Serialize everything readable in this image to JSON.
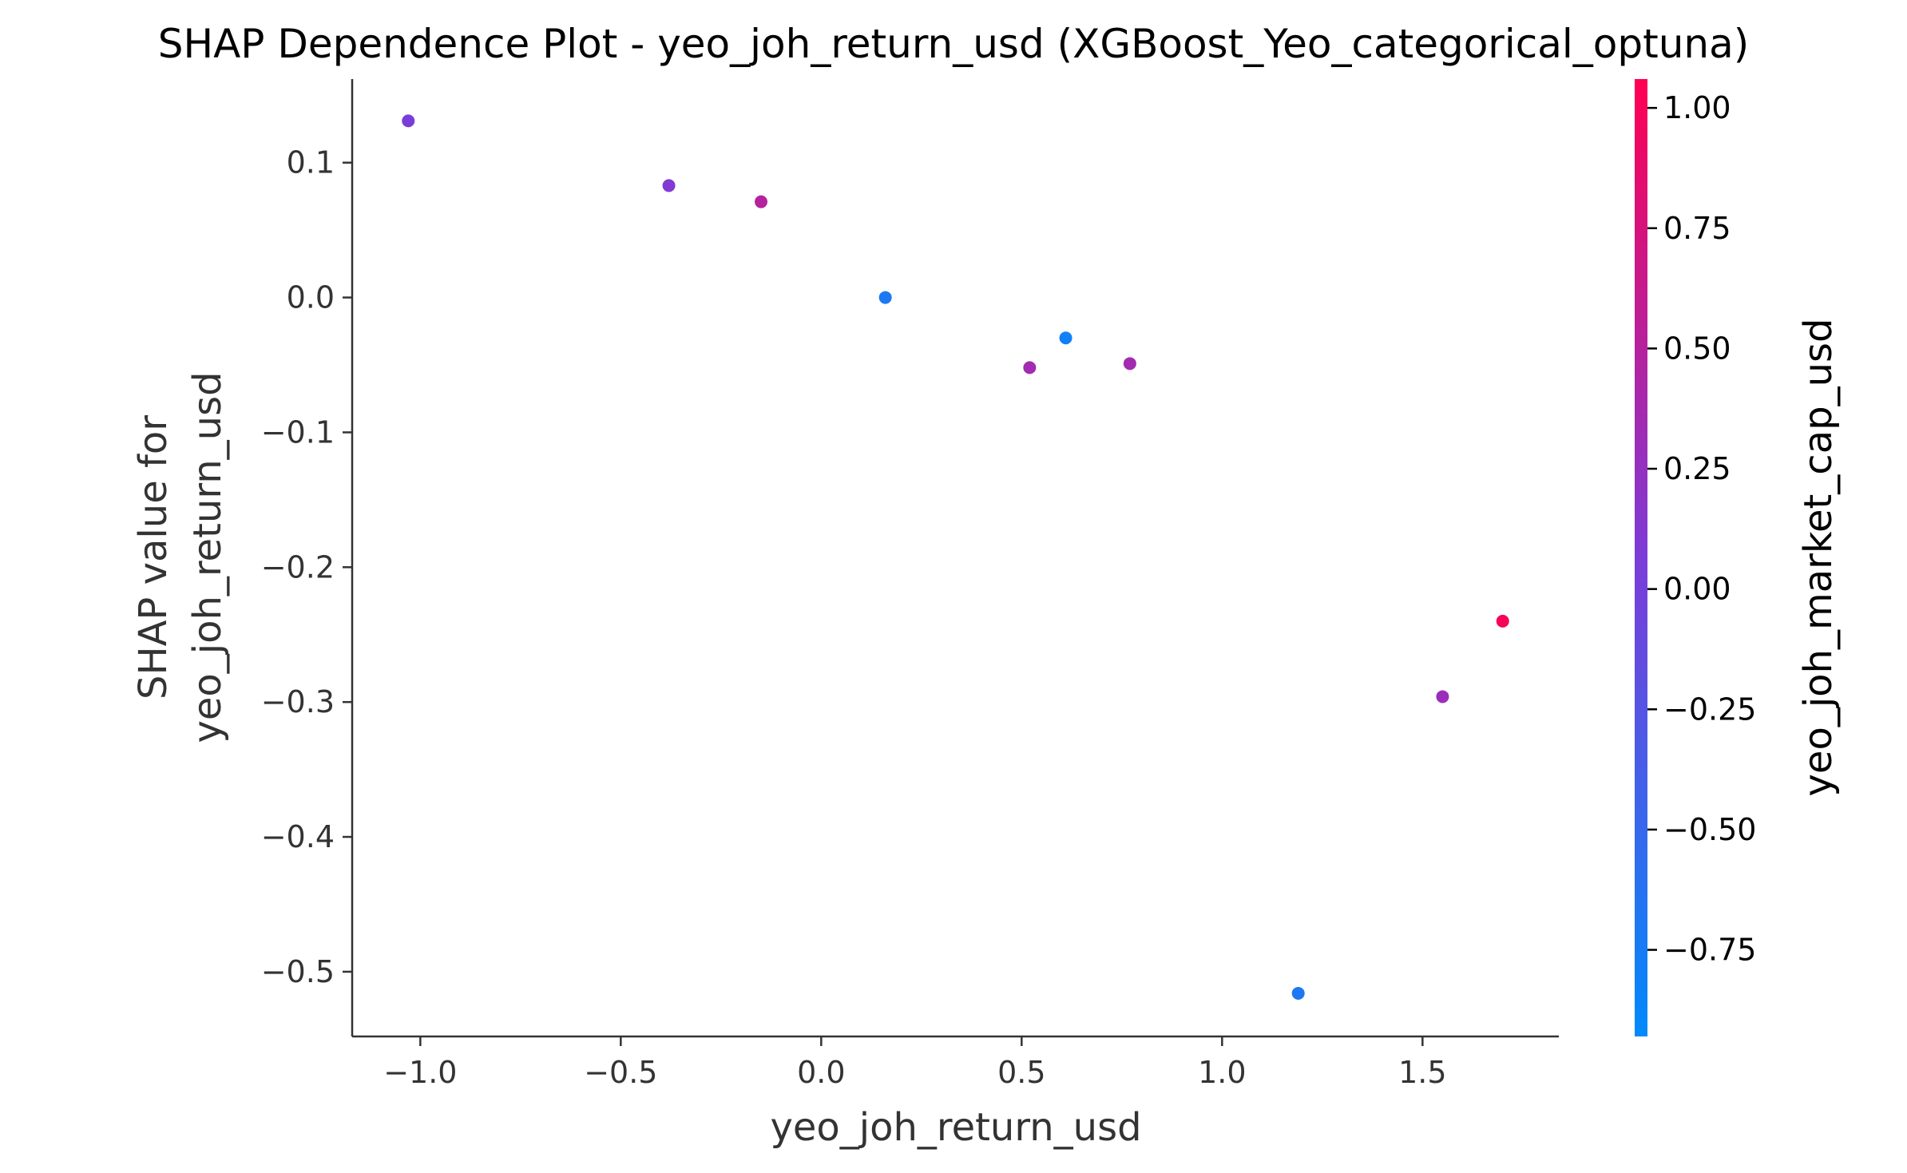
{
  "chart_data": {
    "type": "scatter",
    "title": "SHAP Dependence Plot - yeo_joh_return_usd (XGBoost_Yeo_categorical_optuna)",
    "xlabel": "yeo_joh_return_usd",
    "ylabel_lines": [
      "SHAP value for",
      "yeo_joh_return_usd"
    ],
    "xlim": [
      -1.17,
      1.84
    ],
    "ylim": [
      -0.548,
      0.162
    ],
    "x_ticks": [
      -1.0,
      -0.5,
      0.0,
      0.5,
      1.0,
      1.5
    ],
    "x_tick_labels": [
      "−1.0",
      "−0.5",
      "0.0",
      "0.5",
      "1.0",
      "1.5"
    ],
    "y_ticks": [
      0.1,
      0.0,
      -0.1,
      -0.2,
      -0.3,
      -0.4,
      -0.5
    ],
    "y_tick_labels": [
      "0.1",
      "0.0",
      "−0.1",
      "−0.2",
      "−0.3",
      "−0.4",
      "−0.5"
    ],
    "grid": false,
    "points": [
      {
        "x": -1.03,
        "y": 0.131,
        "color_value": 0.05
      },
      {
        "x": -0.38,
        "y": 0.083,
        "color_value": 0.1
      },
      {
        "x": -0.15,
        "y": 0.071,
        "color_value": 0.5
      },
      {
        "x": 0.16,
        "y": 0.0,
        "color_value": -0.7
      },
      {
        "x": 0.52,
        "y": -0.052,
        "color_value": 0.35
      },
      {
        "x": 0.61,
        "y": -0.03,
        "color_value": -0.8
      },
      {
        "x": 0.77,
        "y": -0.049,
        "color_value": 0.35
      },
      {
        "x": 1.19,
        "y": -0.516,
        "color_value": -0.7
      },
      {
        "x": 1.55,
        "y": -0.296,
        "color_value": 0.3
      },
      {
        "x": 1.7,
        "y": -0.24,
        "color_value": 1.0
      }
    ],
    "colorbar": {
      "label": "yeo_joh_market_cap_usd",
      "range": [
        -0.93,
        1.06
      ],
      "ticks": [
        1.0,
        0.75,
        0.5,
        0.25,
        0.0,
        -0.25,
        -0.5,
        -0.75
      ],
      "tick_labels": [
        "1.00",
        "0.75",
        "0.50",
        "0.25",
        "0.00",
        "−0.25",
        "−0.50",
        "−0.75"
      ],
      "color_low": "#008afb",
      "color_mid": "#7c3cd8",
      "color_high": "#ff0052"
    }
  }
}
